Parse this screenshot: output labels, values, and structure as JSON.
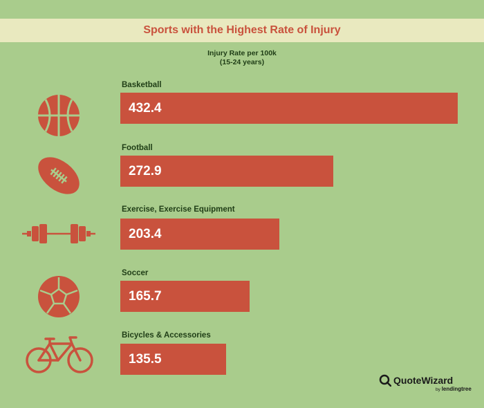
{
  "chart_data": {
    "type": "bar",
    "orientation": "horizontal",
    "title": "Sports with the Highest Rate of Injury",
    "subtitle_lines": [
      "Injury Rate per 100k",
      "(15-24 years)"
    ],
    "categories": [
      "Basketball",
      "Football",
      "Exercise, Exercise Equipment",
      "Soccer",
      "Bicycles & Accessories"
    ],
    "values": [
      432.4,
      272.9,
      203.4,
      165.7,
      135.5
    ],
    "value_labels": [
      "432.4",
      "272.9",
      "203.4",
      "165.7",
      "135.5"
    ],
    "xlim": [
      0,
      432.4
    ],
    "grid": false,
    "legend": "none"
  },
  "icons": [
    "basketball-icon",
    "football-icon",
    "dumbbell-icon",
    "soccer-ball-icon",
    "bicycle-icon"
  ],
  "brand": {
    "name": "QuoteWizard",
    "tagline_prefix": "by",
    "tagline_brand": "lendingtree"
  },
  "colors": {
    "background": "#a9cc8c",
    "title_band": "#e9e9bf",
    "accent": "#c9523d",
    "text_dark": "#1f3d16"
  }
}
